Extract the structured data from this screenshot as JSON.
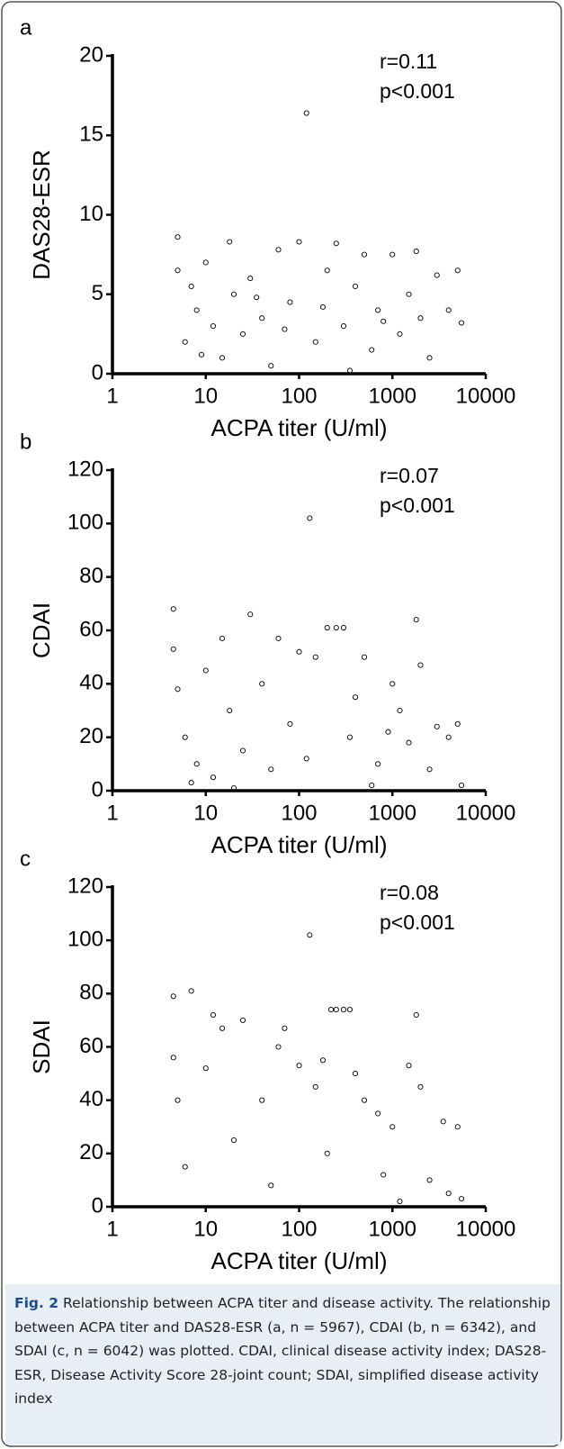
{
  "chart_data": [
    {
      "type": "scatter",
      "panel_label": "a",
      "y_label": "DAS28-ESR",
      "x_label": "ACPA titer (U/ml)",
      "annotations": [
        "r=0.11",
        "p<0.001"
      ],
      "log_x": true,
      "xlim": [
        1,
        10000
      ],
      "xticks": [
        1,
        10,
        100,
        1000,
        10000
      ],
      "ylim": [
        0,
        20
      ],
      "yticks": [
        0,
        5,
        10,
        15,
        20
      ],
      "color": "#ffffff",
      "x": [
        5,
        5,
        6,
        8,
        10,
        12,
        15,
        18,
        20,
        25,
        30,
        40,
        50,
        60,
        80,
        100,
        120,
        150,
        200,
        250,
        300,
        350,
        400,
        500,
        600,
        700,
        1000,
        1200,
        1500,
        1800,
        2000,
        2500,
        3000,
        4000,
        5000,
        5500,
        7,
        9,
        35,
        70,
        180,
        800
      ],
      "values": [
        8.6,
        6.5,
        2,
        4,
        7,
        3,
        1,
        8.3,
        5,
        2.5,
        6,
        3.5,
        0.5,
        7.8,
        4.5,
        8.3,
        16.4,
        2,
        6.5,
        8.2,
        3,
        0.2,
        5.5,
        7.5,
        1.5,
        4,
        7.5,
        2.5,
        5,
        7.7,
        3.5,
        1,
        6.2,
        4,
        6.5,
        3.2,
        5.5,
        1.2,
        4.8,
        2.8,
        4.2,
        3.3
      ]
    },
    {
      "type": "scatter",
      "panel_label": "b",
      "y_label": "CDAI",
      "x_label": "ACPA titer (U/ml)",
      "annotations": [
        "r=0.07",
        "p<0.001"
      ],
      "log_x": true,
      "xlim": [
        1,
        10000
      ],
      "xticks": [
        1,
        10,
        100,
        1000,
        10000
      ],
      "ylim": [
        0,
        120
      ],
      "yticks": [
        0,
        20,
        40,
        60,
        80,
        100,
        120
      ],
      "color": "#ffffff",
      "x": [
        4.5,
        4.5,
        5,
        6,
        8,
        10,
        12,
        15,
        18,
        25,
        30,
        40,
        50,
        60,
        80,
        100,
        130,
        150,
        200,
        250,
        300,
        350,
        400,
        500,
        700,
        1000,
        1200,
        1500,
        1800,
        2000,
        2500,
        3000,
        4000,
        5000,
        5500,
        7,
        20,
        120,
        600,
        900
      ],
      "values": [
        68,
        53,
        38,
        20,
        10,
        45,
        5,
        57,
        30,
        15,
        66,
        40,
        8,
        57,
        25,
        52,
        102,
        50,
        61,
        61,
        61,
        20,
        35,
        50,
        10,
        40,
        30,
        18,
        64,
        47,
        8,
        24,
        20,
        25,
        2,
        3,
        1,
        12,
        2,
        22
      ]
    },
    {
      "type": "scatter",
      "panel_label": "c",
      "y_label": "SDAI",
      "x_label": "ACPA titer (U/ml)",
      "annotations": [
        "r=0.08",
        "p<0.001"
      ],
      "log_x": true,
      "xlim": [
        1,
        10000
      ],
      "xticks": [
        1,
        10,
        100,
        1000,
        10000
      ],
      "ylim": [
        0,
        120
      ],
      "yticks": [
        0,
        20,
        40,
        60,
        80,
        100,
        120
      ],
      "color": "#ffffff",
      "x": [
        4.5,
        4.5,
        5,
        7,
        10,
        12,
        15,
        25,
        40,
        60,
        70,
        100,
        130,
        150,
        180,
        220,
        250,
        300,
        350,
        400,
        500,
        700,
        1000,
        1500,
        1800,
        2000,
        2500,
        3500,
        4000,
        5000,
        5500,
        6,
        20,
        50,
        200,
        800,
        1200
      ],
      "values": [
        79,
        56,
        40,
        81,
        52,
        72,
        67,
        70,
        40,
        60,
        67,
        53,
        102,
        45,
        55,
        74,
        74,
        74,
        74,
        50,
        40,
        35,
        30,
        53,
        72,
        45,
        10,
        32,
        5,
        30,
        3,
        15,
        25,
        8,
        20,
        12,
        2
      ]
    }
  ],
  "caption": {
    "label": "Fig. 2",
    "text": "Relationship between ACPA titer and disease activity. The relationship between ACPA titer and DAS28-ESR (a, n = 5967), CDAI (b, n = 6342), and SDAI (c, n = 6042) was plotted. CDAI, clinical disease activity index; DAS28-ESR, Disease Activity Score 28-joint count; SDAI, simplified disease activity index"
  }
}
